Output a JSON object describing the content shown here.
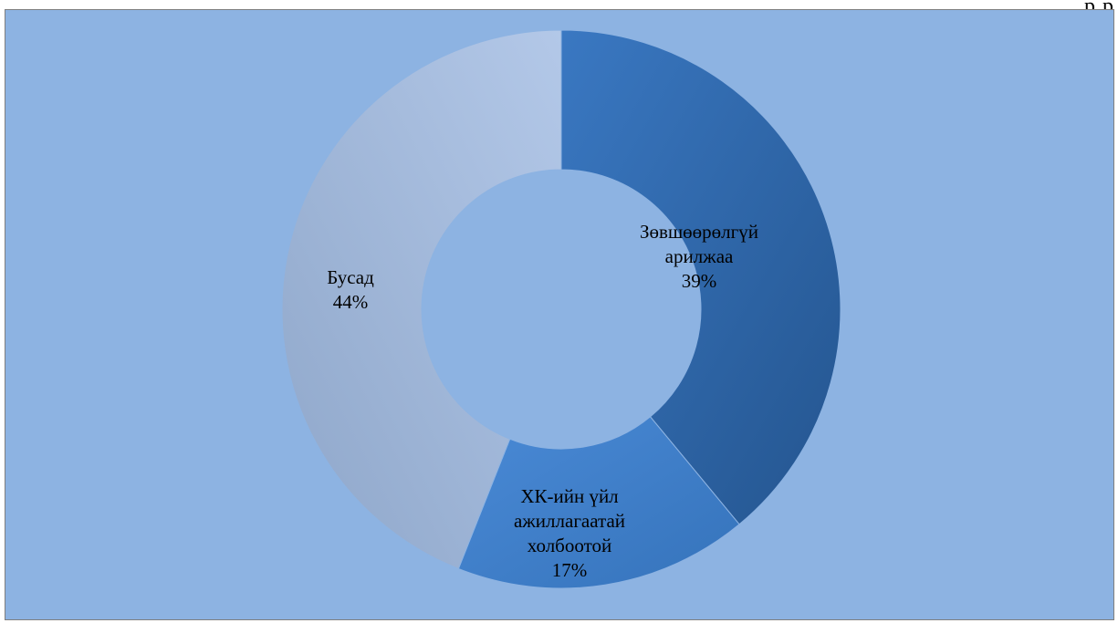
{
  "header": {
    "corner_text": "р р"
  },
  "chart_data": {
    "type": "pie",
    "variant": "doughnut",
    "title": "",
    "slices": [
      {
        "label_lines": [
          "Зөвшөөрөлгүй",
          "арилжаа"
        ],
        "percent_label": "39%",
        "value": 39,
        "color": "#2f6aad"
      },
      {
        "label_lines": [
          "ХК-ийн үйл",
          "ажиллагаатай",
          "холбоотой"
        ],
        "percent_label": "17%",
        "value": 17,
        "color": "#3d7fcc"
      },
      {
        "label_lines": [
          "Бусад"
        ],
        "percent_label": "44%",
        "value": 44,
        "color": "#a9bfe0"
      }
    ],
    "legend": "none",
    "plot_background": "#8db3e2"
  }
}
